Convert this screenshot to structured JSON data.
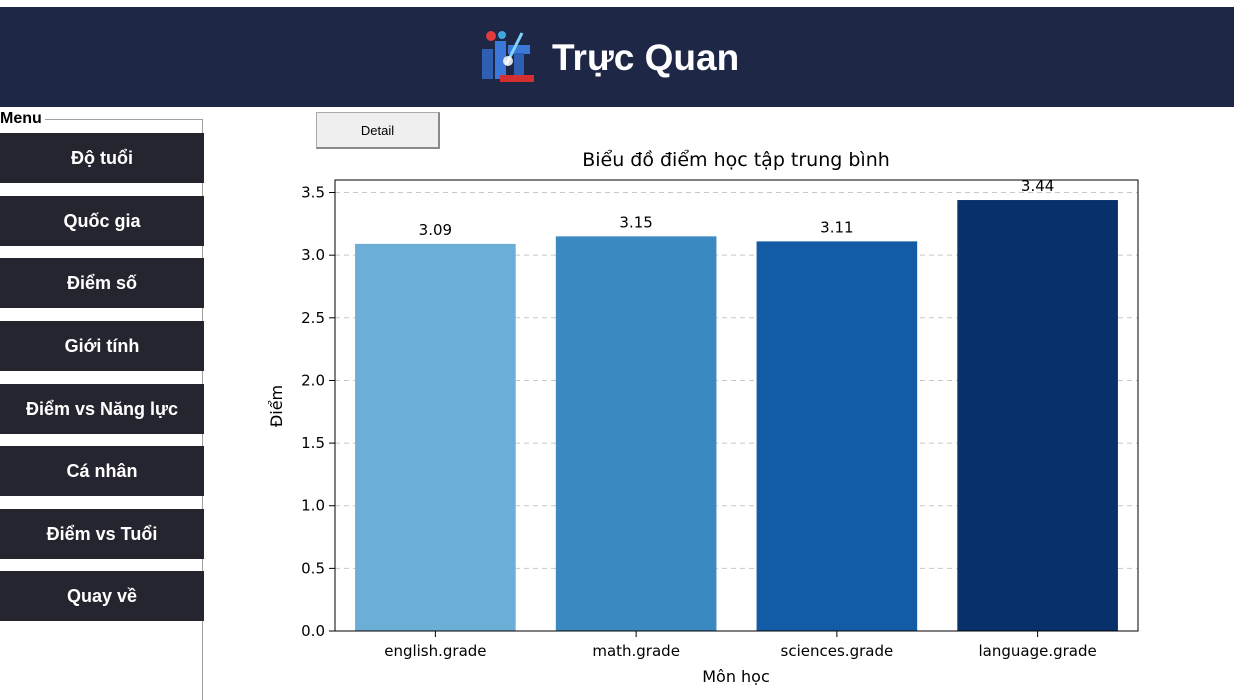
{
  "header": {
    "title": "Trực Quan",
    "logo_icon": "school-logo-icon",
    "background": "#1f2747"
  },
  "menu": {
    "label": "Menu",
    "items": [
      {
        "label": "Độ tuổi"
      },
      {
        "label": "Quốc gia"
      },
      {
        "label": "Điểm số"
      },
      {
        "label": "Giới tính"
      },
      {
        "label": "Điểm vs Năng lực"
      },
      {
        "label": "Cá nhân"
      },
      {
        "label": "Điểm vs Tuổi"
      },
      {
        "label": "Quay về"
      }
    ],
    "button_color": "#25252f"
  },
  "toolbar": {
    "detail_label": "Detail"
  },
  "chart_data": {
    "type": "bar",
    "title": "Biểu đồ điểm học tập trung bình",
    "xlabel": "Môn học",
    "ylabel": "Điểm",
    "categories": [
      "english.grade",
      "math.grade",
      "sciences.grade",
      "language.grade"
    ],
    "values": [
      3.09,
      3.15,
      3.11,
      3.44
    ],
    "value_labels": [
      "3.09",
      "3.15",
      "3.11",
      "3.44"
    ],
    "yticks": [
      "0.0",
      "0.5",
      "1.0",
      "1.5",
      "2.0",
      "2.5",
      "3.0",
      "3.5"
    ],
    "ylim": [
      0,
      3.6
    ],
    "grid": "horizontal dashed",
    "colors": [
      "#6baed6",
      "#3a89c1",
      "#135ba5",
      "#08306b"
    ]
  }
}
